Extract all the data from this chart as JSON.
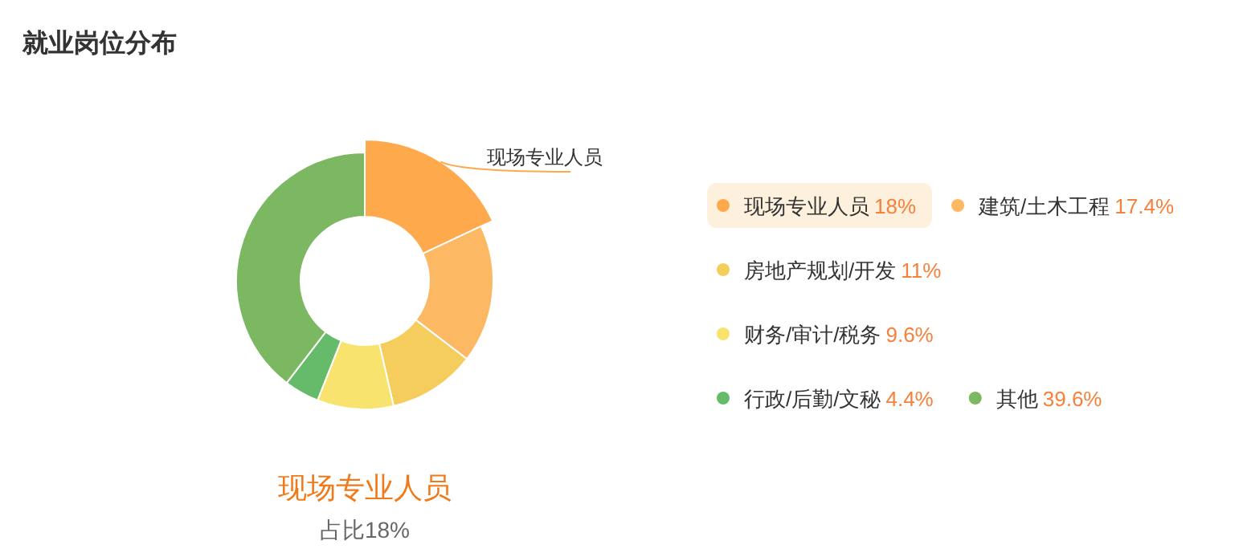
{
  "chart_data": {
    "type": "donut",
    "title": "就业岗位分布",
    "categories": [
      "现场专业人员",
      "建筑/土木工程",
      "房地产规划/开发",
      "财务/审计/税务",
      "行政/后勤/文秘",
      "其他"
    ],
    "values": [
      18,
      17.4,
      11,
      9.6,
      4.4,
      39.6
    ],
    "value_labels": [
      "18%",
      "17.4%",
      "11%",
      "9.6%",
      "4.4%",
      "39.6%"
    ],
    "colors": [
      "#ffa94d",
      "#fcb862",
      "#f5cd5c",
      "#f7e36d",
      "#66bb6a",
      "#7cb862"
    ],
    "legend": "right",
    "annotations": [
      {
        "text": "现场专业人员",
        "x": "现场专业人员"
      },
      "现场专业人员",
      "占比18%"
    ]
  }
}
